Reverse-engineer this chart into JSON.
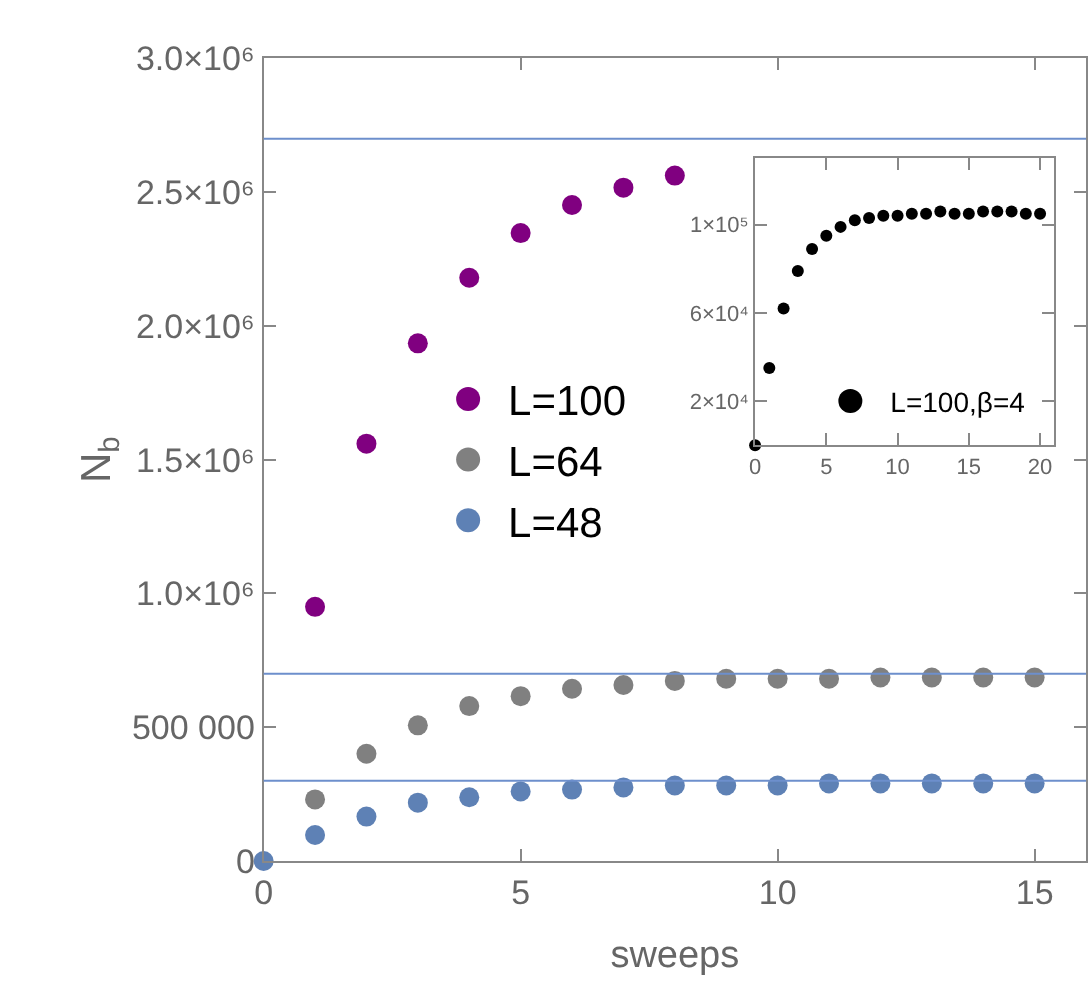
{
  "chart_data": [
    {
      "type": "scatter",
      "xlabel": "sweeps",
      "ylabel": "N$_{b}$",
      "marker": "circle",
      "legend": "left",
      "grid": false,
      "xlim": [
        0,
        16
      ],
      "xticks": [
        0,
        5,
        10,
        15
      ],
      "ylim": [
        0,
        3000000
      ],
      "yticks": [
        0,
        {
          "value": 500000,
          "label": "500 000"
        },
        {
          "value": 1000000,
          "label": "1.0×10⁶"
        },
        {
          "value": 1500000,
          "label": "1.5×10⁶"
        },
        {
          "value": 2000000,
          "label": "2.0×10⁶"
        },
        {
          "value": 2500000,
          "label": "2.5×10⁶"
        },
        {
          "value": 3000000,
          "label": "3.0×10⁶"
        }
      ],
      "series": [
        {
          "name": "L=100",
          "color": "#800080",
          "x": [
            1,
            2,
            3,
            4,
            5,
            6,
            7,
            8
          ],
          "values": [
            950000,
            1560000,
            1935000,
            2180000,
            2347000,
            2452000,
            2517000,
            2562000
          ]
        },
        {
          "name": "L=64",
          "color": "#808080",
          "x": [
            1,
            2,
            3,
            4,
            5,
            6,
            7,
            8,
            9,
            10,
            11,
            12,
            13,
            14,
            15
          ],
          "values": [
            230000,
            401000,
            507000,
            579000,
            616000,
            644000,
            658000,
            673000,
            681000,
            681000,
            681000,
            686000,
            686000,
            686000,
            686000
          ]
        },
        {
          "name": "L=48",
          "color": "#5e81b5",
          "x": [
            0,
            1,
            2,
            3,
            4,
            5,
            6,
            7,
            8,
            9,
            10,
            11,
            12,
            13,
            14,
            15
          ],
          "values": [
            0,
            97000,
            166000,
            218000,
            238000,
            260000,
            267000,
            275000,
            282000,
            282000,
            282000,
            290000,
            290000,
            290000,
            290000,
            290000
          ]
        }
      ],
      "ref_lines": [
        {
          "axis": "y",
          "value": 2700000,
          "color": "#6d8fcc"
        },
        {
          "axis": "y",
          "value": 700000,
          "color": "#6d8fcc"
        },
        {
          "axis": "y",
          "value": 300000,
          "color": "#6d8fcc"
        }
      ]
    },
    {
      "type": "scatter",
      "marker": "circle",
      "legend": "bottom right",
      "grid": false,
      "xlim": [
        0,
        21
      ],
      "xticks": [
        0,
        5,
        10,
        15,
        20
      ],
      "ylim": [
        0,
        130000
      ],
      "yticks": [
        {
          "value": 20000,
          "label": "2×10⁴"
        },
        {
          "value": 60000,
          "label": "6×10⁴"
        },
        {
          "value": 100000,
          "label": "1×10⁵"
        }
      ],
      "series": [
        {
          "name": "L=100,β=4",
          "color": "#000000",
          "x": [
            0,
            1,
            2,
            3,
            4,
            5,
            6,
            7,
            8,
            9,
            10,
            11,
            12,
            13,
            14,
            15,
            16,
            17,
            18,
            19,
            20
          ],
          "values": [
            0,
            35000,
            62000,
            79000,
            89000,
            95000,
            99000,
            102000,
            103000,
            104000,
            104000,
            105000,
            105000,
            106000,
            105000,
            105000,
            106000,
            106000,
            106000,
            105000,
            105000
          ]
        }
      ]
    }
  ]
}
